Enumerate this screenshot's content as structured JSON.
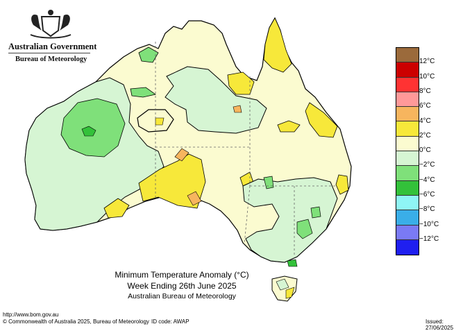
{
  "header": {
    "government": "Australian Government",
    "bureau": "Bureau of Meteorology"
  },
  "map": {
    "title_line1": "Minimum Temperature Anomaly (°C)",
    "title_line2": "Week Ending 26th June 2025",
    "title_line3": "Australian Bureau of Meteorology"
  },
  "legend": {
    "colors": [
      "#9b6a3b",
      "#cc0000",
      "#ff3333",
      "#ff9999",
      "#f7b55e",
      "#f7e83a",
      "#fbfbd0",
      "#d6f5d3",
      "#7fe07a",
      "#33c13a",
      "#8ff5f5",
      "#3aaee8",
      "#7a7af5",
      "#1f1ff0"
    ],
    "labels": [
      "12°C",
      "10°C",
      "8°C",
      "6°C",
      "4°C",
      "2°C",
      "0°C",
      "−2°C",
      "−4°C",
      "−6°C",
      "−8°C",
      "−10°C",
      "−12°C"
    ]
  },
  "footer": {
    "url": "http://www.bom.gov.au",
    "copyright": "© Commonwealth of Australia 2025, Bureau of Meteorology",
    "id_code": "ID code: AWAP",
    "issued": "Issued: 27/06/2025"
  }
}
